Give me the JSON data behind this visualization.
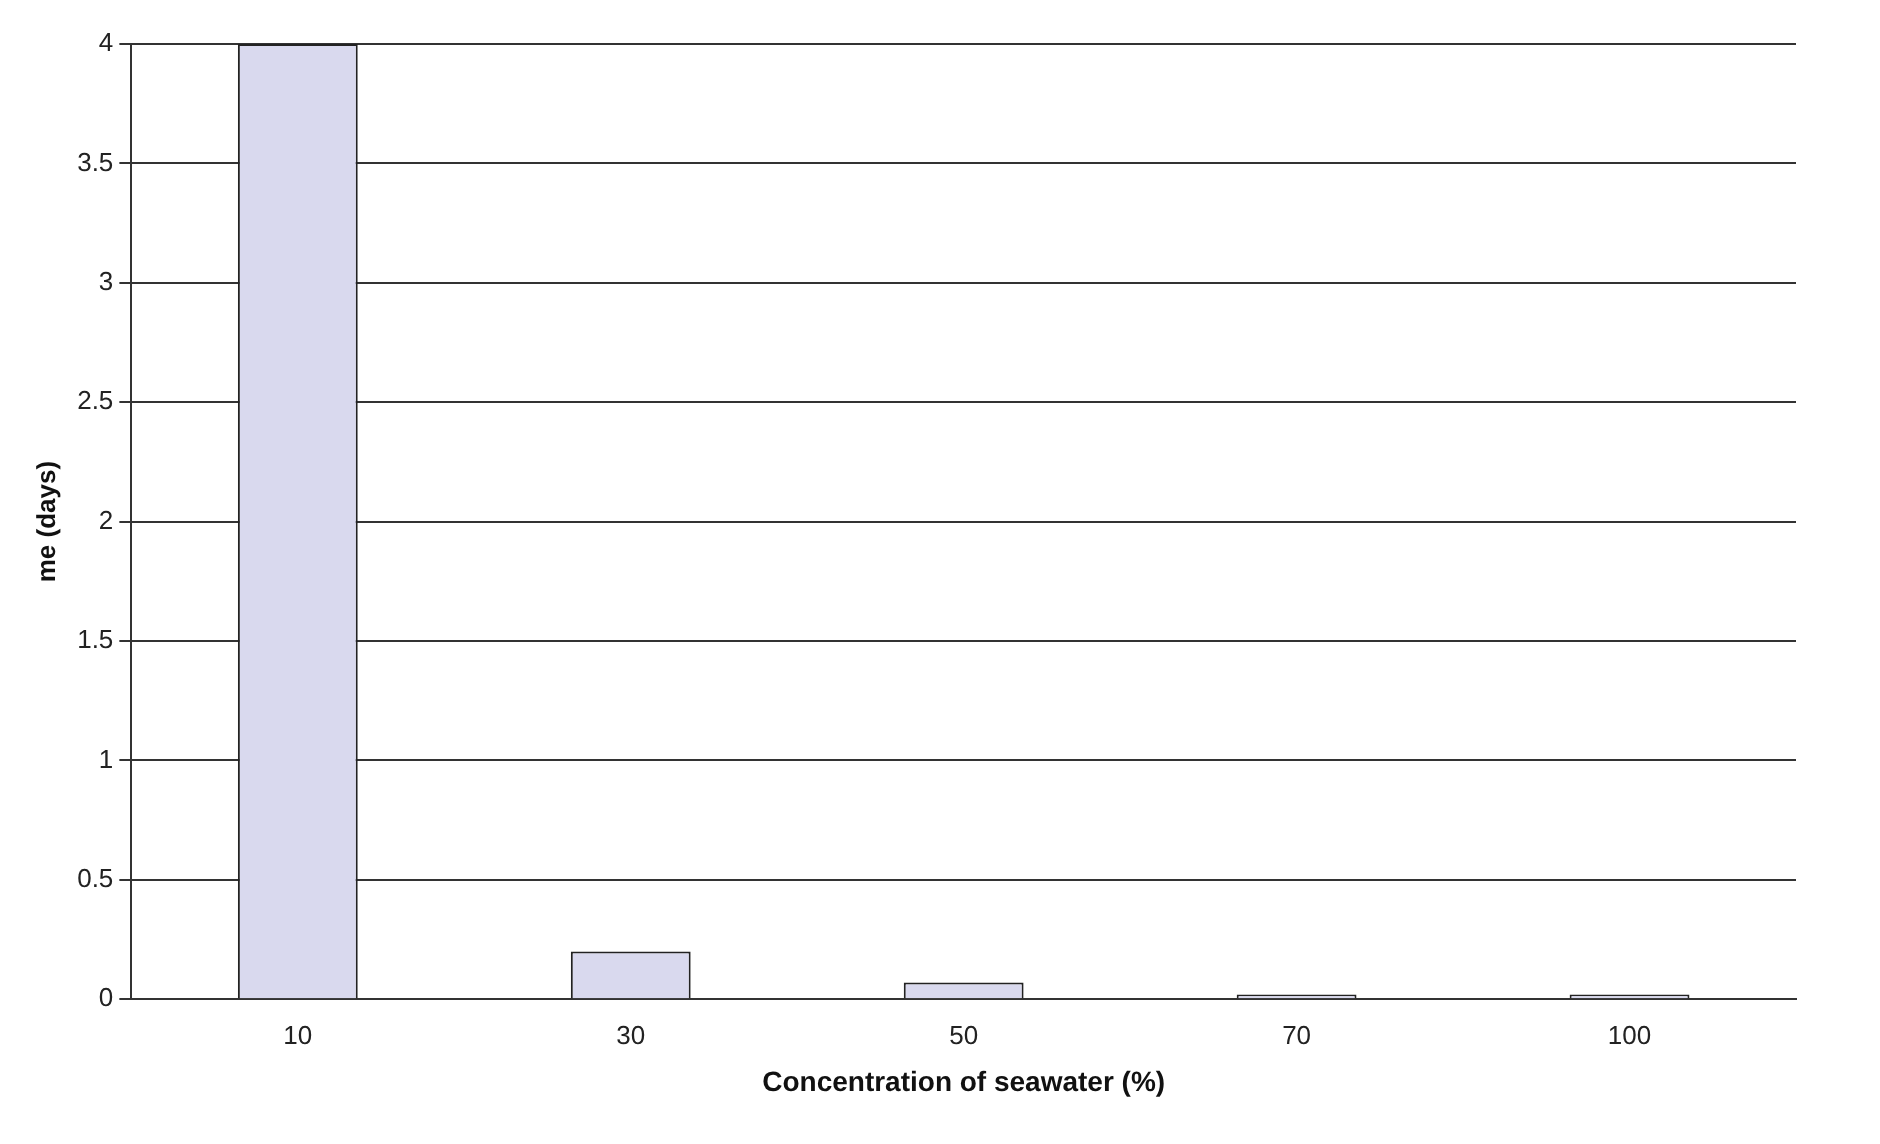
{
  "chart_data": {
    "type": "bar",
    "xlabel": "Concentration of seawater (%)",
    "ylabel": "me (days)",
    "categories": [
      "10",
      "30",
      "50",
      "70",
      "100"
    ],
    "series": [
      {
        "color": "#d9d9ee",
        "values": [
          4.0,
          0.2,
          0.07,
          0.02,
          0.02
        ]
      }
    ],
    "ylim": [
      0,
      4
    ],
    "yticks": [
      0,
      0.5,
      1,
      1.5,
      2,
      2.5,
      3,
      3.5,
      4
    ],
    "grid": "y",
    "legend": false
  }
}
